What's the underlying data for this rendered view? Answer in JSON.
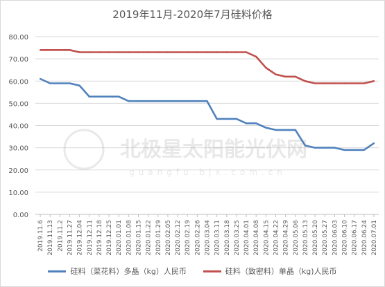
{
  "chart_data": {
    "type": "line",
    "title": "2019年11月-2020年7月硅料价格",
    "ylim": [
      0,
      80
    ],
    "yticks": [
      "0.00",
      "10.00",
      "20.00",
      "30.00",
      "40.00",
      "50.00",
      "60.00",
      "70.00",
      "80.00"
    ],
    "grid": true,
    "legend_position": "bottom",
    "x": [
      "2019.11.6",
      "2019.11.13",
      "2019.11.2",
      "2019.11.27",
      "2019.12.04",
      "2019.12.11",
      "2019.12.18",
      "2019.12.25",
      "2020.01.01",
      "2020.01.08",
      "2020.01.15",
      "2020.01.22",
      "2020.01.29",
      "2020.02.05",
      "2020.02.12",
      "2020.02.19",
      "2020.02.26",
      "2020.03.04",
      "2020.03.11",
      "2020.03.18",
      "2020.03.25",
      "2020.04.01",
      "2020.04.08",
      "2020.04.15",
      "2020.04.22",
      "2020.04.29",
      "2020.05.06",
      "2020.05.13",
      "2020.05.20",
      "2020.05.27",
      "2020.06.03",
      "2020.06.10",
      "2020.06.17",
      "2020.06.24",
      "2020.07.01"
    ],
    "series": [
      {
        "name": "硅料（菜花料）多晶（kg）人民币",
        "color": "#4f81bd",
        "values": [
          61,
          59,
          59,
          59,
          58,
          53,
          53,
          53,
          53,
          51,
          51,
          51,
          51,
          51,
          51,
          51,
          51,
          51,
          43,
          43,
          43,
          41,
          41,
          39,
          38,
          38,
          38,
          31,
          30,
          30,
          30,
          29,
          29,
          29,
          32
        ]
      },
      {
        "name": "硅料（致密料）单晶（kg)人民币",
        "color": "#c0504d",
        "values": [
          74,
          74,
          74,
          74,
          73,
          73,
          73,
          73,
          73,
          73,
          73,
          73,
          73,
          73,
          73,
          73,
          73,
          73,
          73,
          73,
          73,
          73,
          71,
          66,
          63,
          62,
          62,
          60,
          59,
          59,
          59,
          59,
          59,
          59,
          60
        ]
      }
    ]
  },
  "watermark": {
    "main": "北极星太阳能光伏网",
    "sub": "guangfu.bjx.com.cn"
  }
}
